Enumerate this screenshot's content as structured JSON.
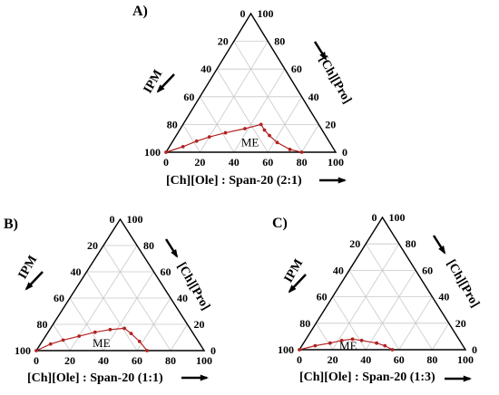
{
  "colors": {
    "curve": "#b22222",
    "grid": "#c8c8c8",
    "outline": "#000000"
  },
  "chart_data": [
    {
      "type": "ternary",
      "panel_label": "A)",
      "components": {
        "left": "IPM",
        "right": "[Ch][Pro]",
        "bottom": "[Ch][Ole] : Span-20 (2:1)"
      },
      "left_ticks": [
        "0",
        "20",
        "40",
        "60",
        "80",
        "100"
      ],
      "right_ticks": [
        "100",
        "80",
        "60",
        "40",
        "20",
        "0"
      ],
      "bottom_ticks": [
        "0",
        "20",
        "40",
        "60",
        "80",
        "100"
      ],
      "region_label": "ME",
      "phase_boundary": {
        "bottom": [
          0,
          8,
          14,
          20,
          28,
          38,
          46,
          50,
          55,
          62,
          72,
          80
        ],
        "right": [
          0,
          4,
          8,
          11,
          14,
          17,
          20,
          16,
          12,
          7,
          2,
          0
        ]
      },
      "grid": true
    },
    {
      "type": "ternary",
      "panel_label": "B)",
      "components": {
        "left": "IPM",
        "right": "[Ch][Pro]",
        "bottom": "[Ch][Ole] : Span-20 (1:1)"
      },
      "left_ticks": [
        "0",
        "20",
        "40",
        "60",
        "80",
        "100"
      ],
      "right_ticks": [
        "100",
        "80",
        "60",
        "40",
        "20",
        "0"
      ],
      "bottom_ticks": [
        "0",
        "20",
        "40",
        "60",
        "80",
        "100"
      ],
      "region_label": "ME",
      "phase_boundary": {
        "bottom": [
          0,
          6,
          12,
          20,
          28,
          36,
          44,
          50,
          58,
          66
        ],
        "right": [
          0,
          5,
          8,
          11,
          14,
          16,
          17,
          13,
          7,
          0
        ]
      },
      "grid": true
    },
    {
      "type": "ternary",
      "panel_label": "C)",
      "components": {
        "left": "IPM",
        "right": "[Ch][Pro]",
        "bottom": "[Ch][Ole] : Span-20 (1:3)"
      },
      "left_ticks": [
        "0",
        "20",
        "40",
        "60",
        "80",
        "100"
      ],
      "right_ticks": [
        "100",
        "80",
        "60",
        "40",
        "20",
        "0"
      ],
      "bottom_ticks": [
        "0",
        "20",
        "40",
        "60",
        "80",
        "100"
      ],
      "region_label": "ME",
      "phase_boundary": {
        "bottom": [
          0,
          8,
          16,
          22,
          28,
          34,
          44,
          50,
          56
        ],
        "right": [
          0,
          3,
          5,
          7,
          8,
          7,
          5,
          3,
          0
        ]
      },
      "grid": true
    }
  ]
}
